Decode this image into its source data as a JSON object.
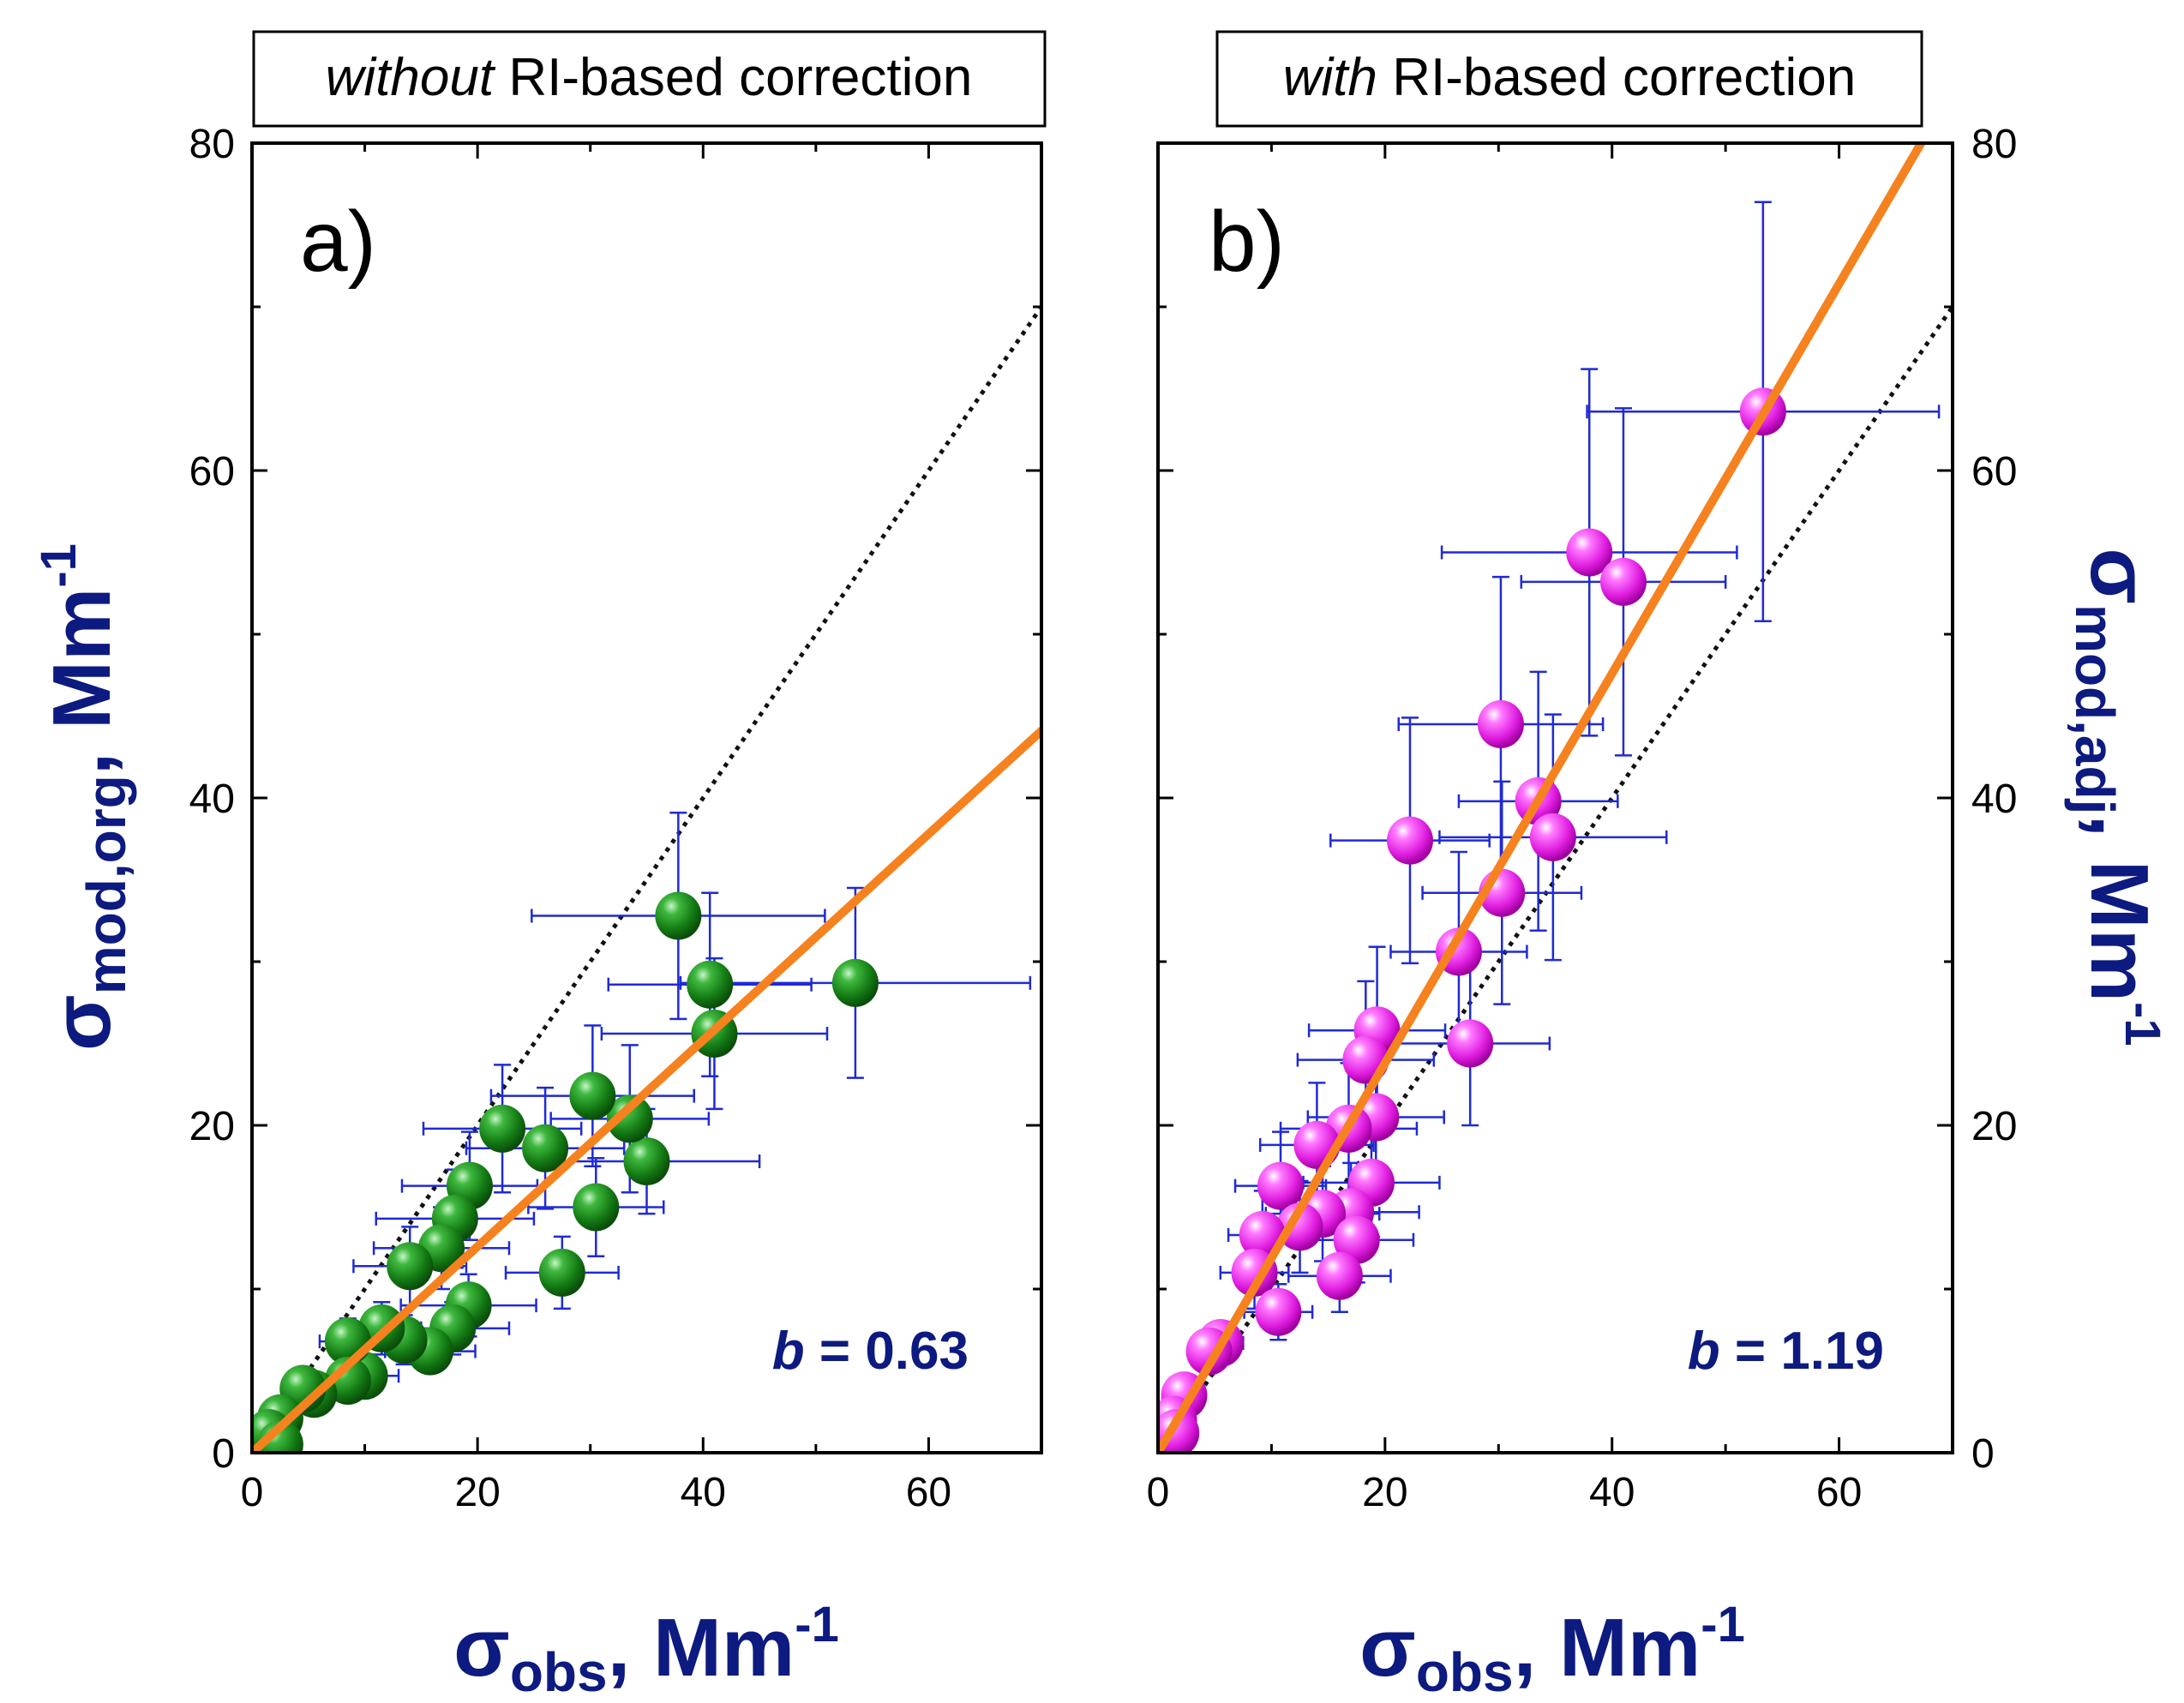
{
  "chart_data": [
    {
      "type": "scatter",
      "panel_label": "a)",
      "title_italic": "without",
      "title_rest": " RI-based correction",
      "xlabel": {
        "symbol": "σ",
        "sub": "obs",
        "unit": ", Mm",
        "sup": "-1"
      },
      "ylabel": {
        "symbol": "σ",
        "sub": "mod,org",
        "unit": ", Mm",
        "sup": "-1"
      },
      "xlim": [
        0,
        70
      ],
      "ylim": [
        0,
        80
      ],
      "xticks": [
        0,
        20,
        40,
        60
      ],
      "yticks": [
        0,
        20,
        40,
        60,
        80
      ],
      "ytick_labels": [
        "0",
        "20",
        "40",
        "60",
        "80"
      ],
      "xtick_labels": [
        "0",
        "20",
        "40",
        "60"
      ],
      "yaxis_side": "left",
      "marker_color": "#1a8a1a",
      "slope_text_var": "b",
      "slope_text_rest": " = 0.63",
      "fit_line": {
        "slope": 0.63,
        "intercept": 0,
        "color": "#f5821f"
      },
      "one_to_one": {
        "slope": 1.0,
        "intercept": 0
      },
      "points": [
        {
          "x": 53.5,
          "y": 28.7,
          "xerr": 15.5,
          "yerr": 5.8
        },
        {
          "x": 37.8,
          "y": 32.8,
          "xerr": 13.0,
          "yerr": 6.3
        },
        {
          "x": 40.6,
          "y": 28.6,
          "xerr": 9.0,
          "yerr": 5.6
        },
        {
          "x": 41.0,
          "y": 25.6,
          "xerr": 10.0,
          "yerr": 4.6
        },
        {
          "x": 35.0,
          "y": 17.8,
          "xerr": 10.0,
          "yerr": 3.2
        },
        {
          "x": 33.5,
          "y": 20.4,
          "xerr": 7.0,
          "yerr": 4.5
        },
        {
          "x": 30.2,
          "y": 21.8,
          "xerr": 9.0,
          "yerr": 4.3
        },
        {
          "x": 30.5,
          "y": 15.0,
          "xerr": 6.0,
          "yerr": 3.0
        },
        {
          "x": 26.0,
          "y": 18.6,
          "xerr": 7.0,
          "yerr": 3.7
        },
        {
          "x": 22.2,
          "y": 19.8,
          "xerr": 7.0,
          "yerr": 3.9
        },
        {
          "x": 27.5,
          "y": 11.0,
          "xerr": 5.0,
          "yerr": 2.2
        },
        {
          "x": 19.3,
          "y": 16.3,
          "xerr": 6.0,
          "yerr": 3.3
        },
        {
          "x": 18.0,
          "y": 14.3,
          "xerr": 7.0,
          "yerr": 3.0
        },
        {
          "x": 16.8,
          "y": 12.5,
          "xerr": 6.0,
          "yerr": 2.5
        },
        {
          "x": 14.0,
          "y": 11.4,
          "xerr": 5.0,
          "yerr": 2.4
        },
        {
          "x": 19.2,
          "y": 9.0,
          "xerr": 6.0,
          "yerr": 1.9
        },
        {
          "x": 17.8,
          "y": 7.6,
          "xerr": 5.0,
          "yerr": 1.6
        },
        {
          "x": 15.8,
          "y": 6.2,
          "xerr": 4.0,
          "yerr": 1.3
        },
        {
          "x": 13.5,
          "y": 6.9,
          "xerr": 4.0,
          "yerr": 1.5
        },
        {
          "x": 11.5,
          "y": 7.6,
          "xerr": 3.5,
          "yerr": 1.6
        },
        {
          "x": 10.0,
          "y": 4.7,
          "xerr": 3.0,
          "yerr": 1.0
        },
        {
          "x": 8.5,
          "y": 6.8,
          "xerr": 2.5,
          "yerr": 1.4
        },
        {
          "x": 8.5,
          "y": 4.4,
          "xerr": 2.5,
          "yerr": 0.9
        },
        {
          "x": 5.5,
          "y": 3.6,
          "xerr": 2.0,
          "yerr": 0.8
        },
        {
          "x": 4.5,
          "y": 3.9,
          "xerr": 1.5,
          "yerr": 0.8
        },
        {
          "x": 2.5,
          "y": 2.1,
          "xerr": 1.0,
          "yerr": 0.5
        },
        {
          "x": 1.5,
          "y": 1.2,
          "xerr": 0.8,
          "yerr": 0.3
        },
        {
          "x": 2.5,
          "y": 0.5,
          "xerr": 0.8,
          "yerr": 0.2
        }
      ]
    },
    {
      "type": "scatter",
      "panel_label": "b)",
      "title_italic": "with",
      "title_rest": " RI-based correction",
      "xlabel": {
        "symbol": "σ",
        "sub": "obs",
        "unit": ", Mm",
        "sup": "-1"
      },
      "ylabel": {
        "symbol": "σ",
        "sub": "mod,adj",
        "unit": ", Mm",
        "sup": "-1"
      },
      "xlim": [
        0,
        70
      ],
      "ylim": [
        0,
        80
      ],
      "xticks": [
        0,
        20,
        40,
        60
      ],
      "yticks": [
        0,
        20,
        40,
        60,
        80
      ],
      "ytick_labels": [
        "0",
        "20",
        "40",
        "60",
        "80"
      ],
      "xtick_labels": [
        "0",
        "20",
        "40",
        "60"
      ],
      "yaxis_side": "right",
      "marker_color": "#e61ee6",
      "slope_text_var": "b",
      "slope_text_rest": " = 1.19",
      "fit_line": {
        "slope": 1.19,
        "intercept": 0,
        "color": "#f5821f"
      },
      "one_to_one": {
        "slope": 1.0,
        "intercept": 0
      },
      "points": [
        {
          "x": 53.3,
          "y": 63.6,
          "xerr": 15.5,
          "yerr": 12.8
        },
        {
          "x": 38.0,
          "y": 55.0,
          "xerr": 13.0,
          "yerr": 11.2
        },
        {
          "x": 41.0,
          "y": 53.2,
          "xerr": 9.0,
          "yerr": 10.6
        },
        {
          "x": 30.2,
          "y": 44.5,
          "xerr": 9.0,
          "yerr": 9.0
        },
        {
          "x": 22.2,
          "y": 37.4,
          "xerr": 7.0,
          "yerr": 7.5
        },
        {
          "x": 33.5,
          "y": 39.8,
          "xerr": 7.0,
          "yerr": 7.9
        },
        {
          "x": 34.8,
          "y": 37.6,
          "xerr": 10.0,
          "yerr": 7.5
        },
        {
          "x": 30.3,
          "y": 34.2,
          "xerr": 7.0,
          "yerr": 6.8
        },
        {
          "x": 26.5,
          "y": 30.6,
          "xerr": 6.0,
          "yerr": 6.1
        },
        {
          "x": 27.5,
          "y": 25.0,
          "xerr": 7.0,
          "yerr": 5.0
        },
        {
          "x": 19.3,
          "y": 25.8,
          "xerr": 6.0,
          "yerr": 5.1
        },
        {
          "x": 18.3,
          "y": 24.0,
          "xerr": 6.0,
          "yerr": 4.8
        },
        {
          "x": 19.2,
          "y": 20.5,
          "xerr": 6.0,
          "yerr": 4.1
        },
        {
          "x": 16.8,
          "y": 19.8,
          "xerr": 6.0,
          "yerr": 4.0
        },
        {
          "x": 14.0,
          "y": 18.8,
          "xerr": 5.0,
          "yerr": 3.8
        },
        {
          "x": 18.8,
          "y": 16.5,
          "xerr": 6.0,
          "yerr": 3.3
        },
        {
          "x": 17.0,
          "y": 14.7,
          "xerr": 6.0,
          "yerr": 3.0
        },
        {
          "x": 14.5,
          "y": 14.6,
          "xerr": 5.0,
          "yerr": 2.9
        },
        {
          "x": 10.8,
          "y": 16.3,
          "xerr": 4.0,
          "yerr": 3.3
        },
        {
          "x": 12.5,
          "y": 13.8,
          "xerr": 4.0,
          "yerr": 2.8
        },
        {
          "x": 17.5,
          "y": 13.0,
          "xerr": 5.0,
          "yerr": 2.6
        },
        {
          "x": 9.2,
          "y": 13.3,
          "xerr": 3.0,
          "yerr": 2.7
        },
        {
          "x": 16.0,
          "y": 10.8,
          "xerr": 4.5,
          "yerr": 2.2
        },
        {
          "x": 8.5,
          "y": 11.0,
          "xerr": 3.0,
          "yerr": 2.2
        },
        {
          "x": 10.6,
          "y": 8.6,
          "xerr": 3.0,
          "yerr": 1.7
        },
        {
          "x": 5.5,
          "y": 6.7,
          "xerr": 2.0,
          "yerr": 1.3
        },
        {
          "x": 4.5,
          "y": 6.2,
          "xerr": 1.5,
          "yerr": 1.2
        },
        {
          "x": 2.3,
          "y": 3.5,
          "xerr": 1.0,
          "yerr": 0.7
        },
        {
          "x": 1.4,
          "y": 2.0,
          "xerr": 0.8,
          "yerr": 0.4
        },
        {
          "x": 1.6,
          "y": 1.2,
          "xerr": 0.8,
          "yerr": 0.3
        }
      ]
    }
  ]
}
